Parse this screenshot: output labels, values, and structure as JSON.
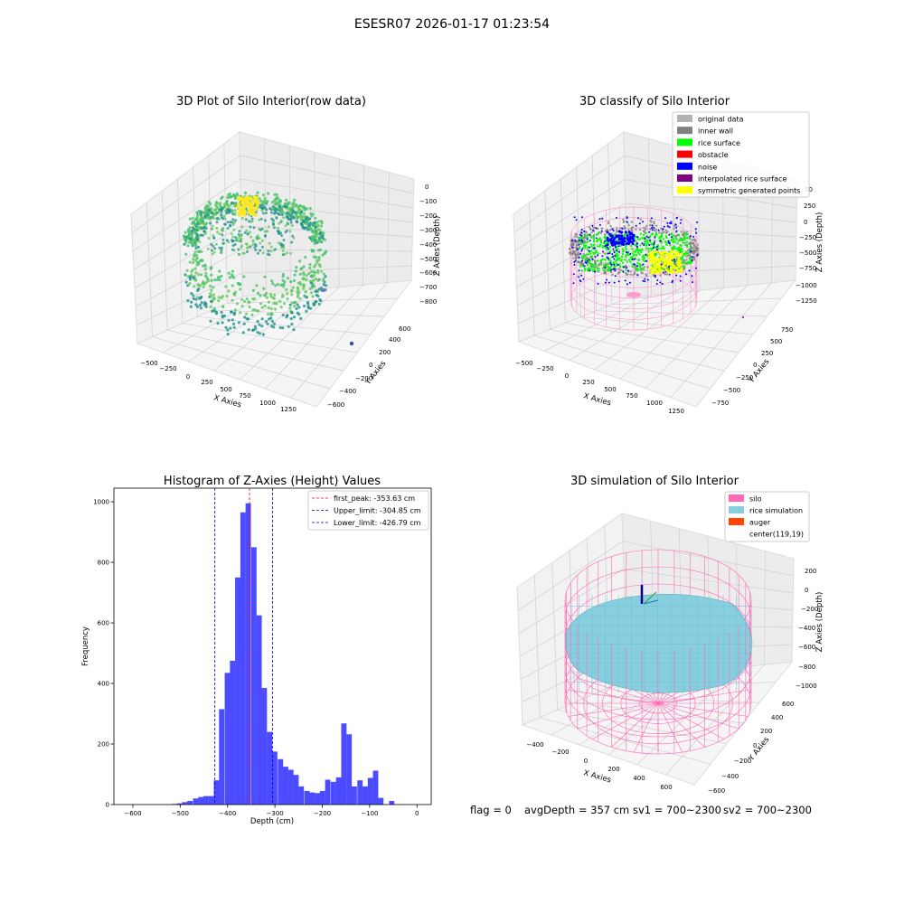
{
  "figure": {
    "suptitle": "ESESR07 2026-01-17 01:23:54",
    "status": {
      "flag": "flag = 0",
      "avg_depth": "avgDepth = 357 cm",
      "sv1": "sv1 = 700~2300",
      "sv2": "sv2 = 700~2300"
    }
  },
  "chart_data": [
    {
      "type": "scatter",
      "projection": "3d",
      "title": "3D Plot of Silo Interior(row data)",
      "xlabel": "X Axies",
      "ylabel": "Y Axies",
      "zlabel": "Z Axies (Depth)",
      "x_ticks": [
        "−500",
        "−250",
        "0",
        "250",
        "500",
        "750",
        "1000",
        "1250"
      ],
      "y_ticks": [
        "−600",
        "−400",
        "−200",
        "0",
        "200",
        "400",
        "600"
      ],
      "z_ticks": [
        "0",
        "−100",
        "−200",
        "−300",
        "−400",
        "−500",
        "−600",
        "−700",
        "−800"
      ],
      "colormap": "viridis",
      "colors": {
        "low": "#3b528b",
        "mid": "#21918c",
        "high": "#5ec962",
        "top": "#fde725"
      }
    },
    {
      "type": "scatter",
      "projection": "3d",
      "title": "3D classify of Silo Interior",
      "xlabel": "X Axies",
      "ylabel": "Y Axies",
      "zlabel": "Z Axies (Depth)",
      "x_ticks": [
        "−500",
        "−250",
        "0",
        "250",
        "500",
        "750",
        "1000",
        "1250"
      ],
      "y_ticks": [
        "−750",
        "−500",
        "−250",
        "0",
        "250",
        "500",
        "750"
      ],
      "z_ticks": [
        "250",
        "0",
        "−250",
        "−500",
        "−750",
        "−1000",
        "−1250"
      ],
      "z_tick_partial": "00",
      "legend_position": "top-right",
      "legend": [
        {
          "name": "original data",
          "color": "#b3b3b3"
        },
        {
          "name": "inner wall",
          "color": "#808080"
        },
        {
          "name": "rice surface",
          "color": "#00ff00"
        },
        {
          "name": "obstacle",
          "color": "#ff0000"
        },
        {
          "name": "noise",
          "color": "#0000ff"
        },
        {
          "name": "interpolated rice surface",
          "color": "#800080"
        },
        {
          "name": "symmetric generated points",
          "color": "#ffff00"
        }
      ],
      "cylinder_color": "#ff88c8"
    },
    {
      "type": "bar",
      "title": "Histogram of Z-Axies (Height) Values",
      "xlabel": "Depth (cm)",
      "ylabel": "Frequency",
      "xlim": [
        -640,
        30
      ],
      "ylim": [
        0,
        1045
      ],
      "x_ticks": [
        -600,
        -500,
        -400,
        -300,
        -200,
        -100,
        0
      ],
      "x_tick_labels": [
        "−600",
        "−500",
        "−400",
        "−300",
        "−200",
        "−100",
        "0"
      ],
      "y_ticks": [
        0,
        200,
        400,
        600,
        800,
        1000
      ],
      "y_tick_labels": [
        "0",
        "200",
        "400",
        "600",
        "800",
        "1000"
      ],
      "bar_color": "#4b4bff",
      "bin_width": 11.2,
      "bins": [
        {
          "x": -518,
          "v": 2
        },
        {
          "x": -507,
          "v": 4
        },
        {
          "x": -496,
          "v": 8
        },
        {
          "x": -485,
          "v": 12
        },
        {
          "x": -473,
          "v": 20
        },
        {
          "x": -462,
          "v": 25
        },
        {
          "x": -451,
          "v": 28
        },
        {
          "x": -440,
          "v": 28
        },
        {
          "x": -429,
          "v": 80
        },
        {
          "x": -418,
          "v": 315
        },
        {
          "x": -406,
          "v": 435
        },
        {
          "x": -395,
          "v": 475
        },
        {
          "x": -384,
          "v": 750
        },
        {
          "x": -373,
          "v": 965
        },
        {
          "x": -362,
          "v": 995
        },
        {
          "x": -350,
          "v": 850
        },
        {
          "x": -339,
          "v": 625
        },
        {
          "x": -328,
          "v": 385
        },
        {
          "x": -317,
          "v": 240
        },
        {
          "x": -306,
          "v": 175
        },
        {
          "x": -294,
          "v": 150
        },
        {
          "x": -283,
          "v": 125
        },
        {
          "x": -272,
          "v": 115
        },
        {
          "x": -261,
          "v": 98
        },
        {
          "x": -250,
          "v": 60
        },
        {
          "x": -238,
          "v": 45
        },
        {
          "x": -227,
          "v": 40
        },
        {
          "x": -216,
          "v": 38
        },
        {
          "x": -205,
          "v": 45
        },
        {
          "x": -194,
          "v": 82
        },
        {
          "x": -182,
          "v": 75
        },
        {
          "x": -171,
          "v": 90
        },
        {
          "x": -160,
          "v": 268
        },
        {
          "x": -149,
          "v": 232
        },
        {
          "x": -138,
          "v": 60
        },
        {
          "x": -126,
          "v": 80
        },
        {
          "x": -115,
          "v": 60
        },
        {
          "x": -104,
          "v": 88
        },
        {
          "x": -93,
          "v": 112
        },
        {
          "x": -82,
          "v": 22
        },
        {
          "x": -59,
          "v": 12
        }
      ],
      "lines": [
        {
          "label": "first_peak: -353.63 cm",
          "x": -353.63,
          "color": "#ff0000"
        },
        {
          "label": "Upper_limit: -304.85 cm",
          "x": -304.85,
          "color": "#0000c8"
        },
        {
          "label": "Lower_limit: -426.79 cm",
          "x": -426.79,
          "color": "#0000c8"
        }
      ],
      "legend_position": "top-right"
    },
    {
      "type": "surface",
      "projection": "3d",
      "title": "3D simulation of Silo Interior",
      "xlabel": "X Axies",
      "ylabel": "Y Axies",
      "zlabel": "Z Axies (Depth)",
      "x_ticks": [
        "−400",
        "−200",
        "0",
        "200",
        "400",
        "600"
      ],
      "y_ticks": [
        "−600",
        "−400",
        "−200",
        "0",
        "200",
        "400",
        "600"
      ],
      "z_ticks": [
        "200",
        "0",
        "−200",
        "−400",
        "−600",
        "−800",
        "−1000"
      ],
      "z_tick_partial": "−200",
      "legend_position": "top-right",
      "legend": [
        {
          "name": "silo",
          "color": "#ff69b4"
        },
        {
          "name": "rice simulation",
          "color": "#87cedf"
        },
        {
          "name": "auger",
          "color": "#ff4500"
        },
        {
          "name": "center(119,19)",
          "color": "#ffffff"
        }
      ]
    }
  ]
}
